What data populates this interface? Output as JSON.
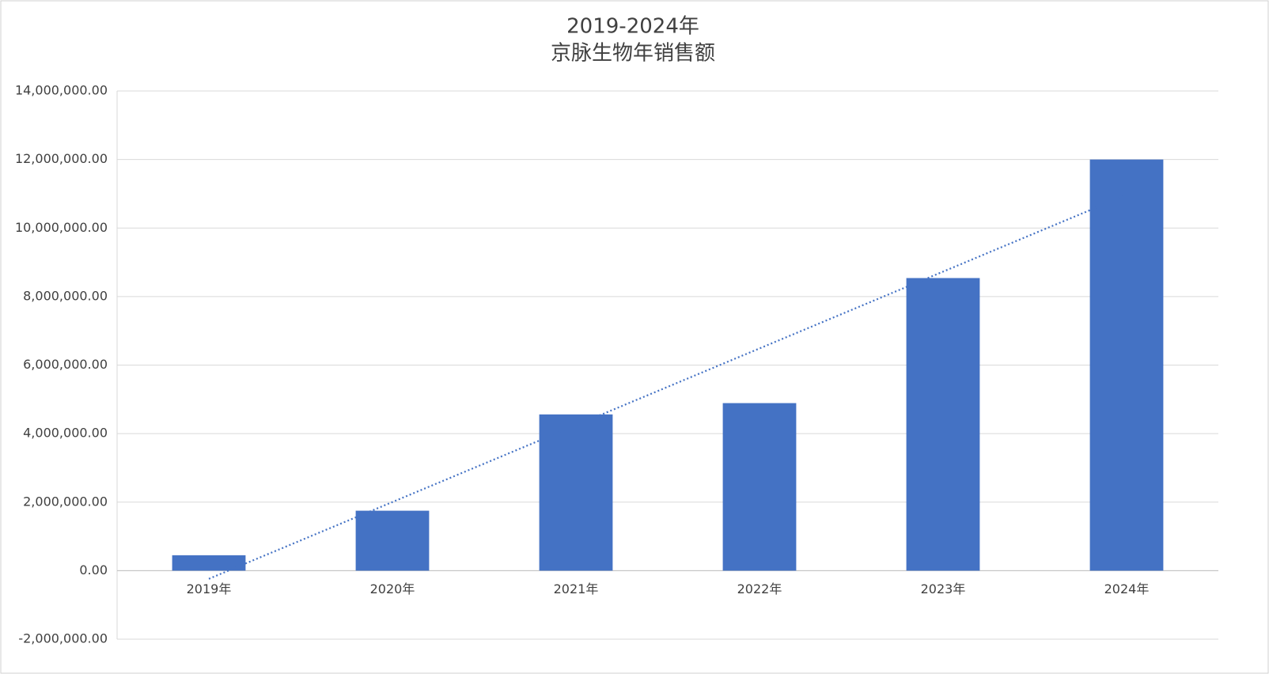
{
  "chart_data": {
    "type": "bar",
    "title": [
      "2019-2024年",
      "京脉生物年销售额"
    ],
    "categories": [
      "2019年",
      "2020年",
      "2021年",
      "2022年",
      "2023年",
      "2024年"
    ],
    "values": [
      450000,
      1750000,
      4560000,
      4890000,
      8540000,
      12000000
    ],
    "color": "#4472c4",
    "ylim": [
      -2000000,
      14000000
    ],
    "yticks": [
      {
        "value": -2000000,
        "label": "-2,000,000.00"
      },
      {
        "value": 0,
        "label": "0.00"
      },
      {
        "value": 2000000,
        "label": "2,000,000.00"
      },
      {
        "value": 4000000,
        "label": "4,000,000.00"
      },
      {
        "value": 6000000,
        "label": "6,000,000.00"
      },
      {
        "value": 8000000,
        "label": "8,000,000.00"
      },
      {
        "value": 10000000,
        "label": "10,000,000.00"
      },
      {
        "value": 12000000,
        "label": "12,000,000.00"
      },
      {
        "value": 14000000,
        "label": "14,000,000.00"
      }
    ],
    "grid": true,
    "trendline": "linear"
  }
}
